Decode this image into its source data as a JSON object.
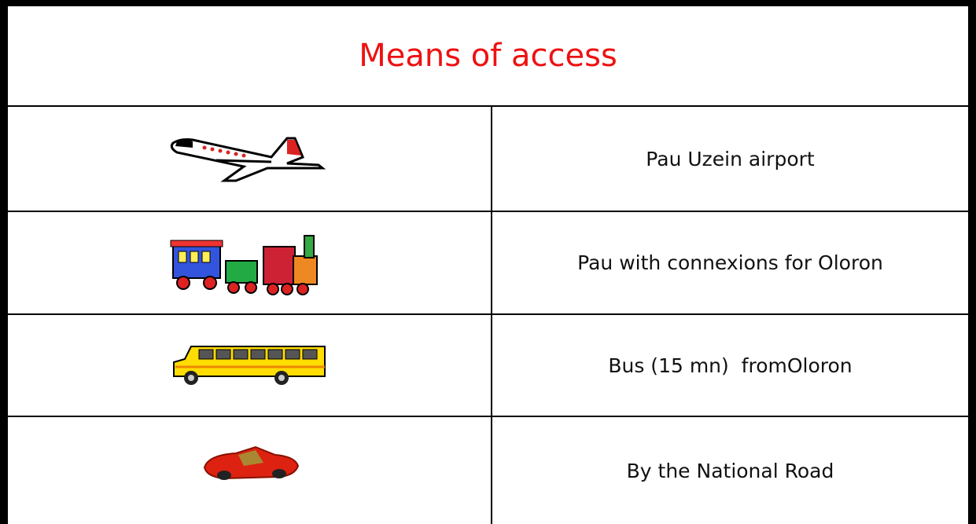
{
  "table": {
    "title": "Means of access",
    "rows": [
      "Pau Uzein airport",
      "Pau with connexions for Oloron",
      "Bus (15 mn)  fromOloron",
      "By the National Road"
    ]
  }
}
